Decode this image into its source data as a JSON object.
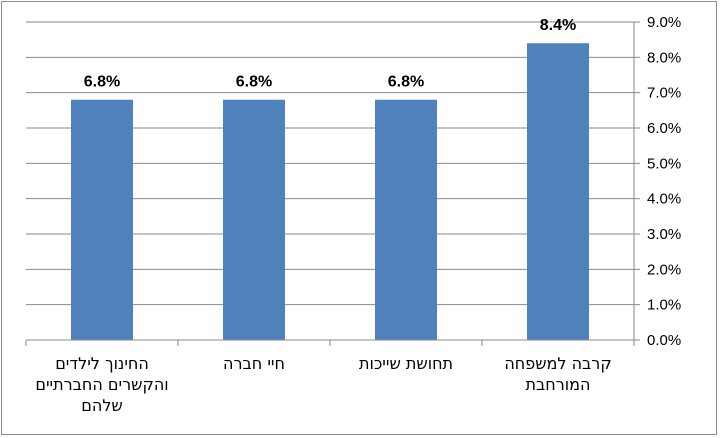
{
  "chart_data": {
    "type": "bar",
    "categories": [
      "החינוך לילדים והקשרים החברתיים שלהם",
      "חיי חברה",
      "תחושת שייכות",
      "קרבה למשפחה המורחבת"
    ],
    "values": [
      6.8,
      6.8,
      6.8,
      8.4
    ],
    "data_labels": [
      "6.8%",
      "6.8%",
      "6.8%",
      "8.4%"
    ],
    "y_ticks": [
      "0.0%",
      "1.0%",
      "2.0%",
      "3.0%",
      "4.0%",
      "5.0%",
      "6.0%",
      "7.0%",
      "8.0%",
      "9.0%"
    ],
    "ylim": [
      0,
      9
    ],
    "y_axis_side": "right",
    "grid": true,
    "bar_color": "#4f81bd"
  }
}
